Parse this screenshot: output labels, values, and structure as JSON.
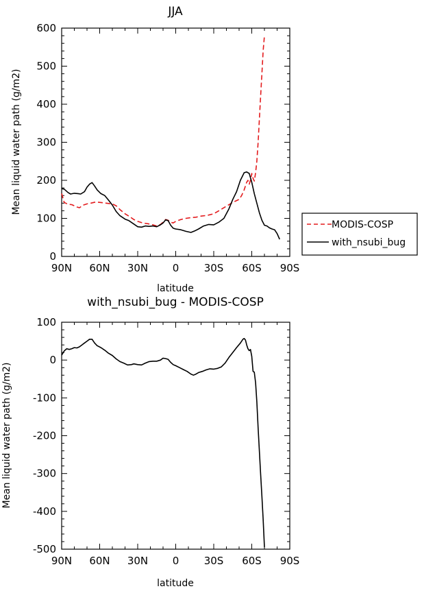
{
  "chart_data": [
    {
      "type": "line",
      "title": "JJA",
      "xlabel": "latitude",
      "ylabel": "Mean liquid water path (g/m2)",
      "xlim": [
        90,
        -90
      ],
      "ylim": [
        0,
        600
      ],
      "x_ticks": [
        90,
        60,
        30,
        0,
        -30,
        -60,
        -90
      ],
      "x_tick_labels": [
        "90N",
        "60N",
        "30N",
        "0",
        "30S",
        "60S",
        "90S"
      ],
      "y_ticks": [
        0,
        100,
        200,
        300,
        400,
        500,
        600
      ],
      "y_tick_labels": [
        "0",
        "100",
        "200",
        "300",
        "400",
        "500",
        "600"
      ],
      "legend_position": "right",
      "series": [
        {
          "name": "MODIS-COSP",
          "color": "#e31a1c",
          "dash": "dashed",
          "points": [
            [
              90,
              165
            ],
            [
              88,
              142
            ],
            [
              85,
              137
            ],
            [
              82,
              136
            ],
            [
              78,
              130
            ],
            [
              76,
              128
            ],
            [
              73,
              135
            ],
            [
              70,
              138
            ],
            [
              67,
              140
            ],
            [
              63,
              143
            ],
            [
              60,
              142
            ],
            [
              55,
              140
            ],
            [
              50,
              138
            ],
            [
              47,
              133
            ],
            [
              44,
              123
            ],
            [
              40,
              112
            ],
            [
              37,
              106
            ],
            [
              33,
              97
            ],
            [
              30,
              92
            ],
            [
              26,
              88
            ],
            [
              22,
              86
            ],
            [
              18,
              83
            ],
            [
              15,
              80
            ],
            [
              12,
              84
            ],
            [
              10,
              90
            ],
            [
              8,
              97
            ],
            [
              6,
              95
            ],
            [
              4,
              90
            ],
            [
              2,
              88
            ],
            [
              0,
              92
            ],
            [
              -4,
              97
            ],
            [
              -8,
              100
            ],
            [
              -12,
              102
            ],
            [
              -16,
              103
            ],
            [
              -20,
              106
            ],
            [
              -25,
              108
            ],
            [
              -30,
              112
            ],
            [
              -35,
              122
            ],
            [
              -40,
              132
            ],
            [
              -45,
              142
            ],
            [
              -50,
              150
            ],
            [
              -52,
              160
            ],
            [
              -54,
              175
            ],
            [
              -56,
              195
            ],
            [
              -57,
              200
            ],
            [
              -58,
              190
            ],
            [
              -59,
              200
            ],
            [
              -60,
              218
            ],
            [
              -61,
              205
            ],
            [
              -62,
              198
            ],
            [
              -63,
              220
            ],
            [
              -64,
              250
            ],
            [
              -65,
              300
            ],
            [
              -66,
              360
            ],
            [
              -67,
              420
            ],
            [
              -68,
              480
            ],
            [
              -69,
              540
            ],
            [
              -70,
              580
            ]
          ]
        },
        {
          "name": "with_nsubi_bug",
          "color": "#000000",
          "dash": "solid",
          "points": [
            [
              90,
              178
            ],
            [
              88,
              177
            ],
            [
              85,
              168
            ],
            [
              83,
              164
            ],
            [
              80,
              166
            ],
            [
              77,
              165
            ],
            [
              75,
              164
            ],
            [
              72,
              170
            ],
            [
              70,
              182
            ],
            [
              68,
              190
            ],
            [
              66,
              194
            ],
            [
              64,
              185
            ],
            [
              62,
              175
            ],
            [
              59,
              165
            ],
            [
              56,
              160
            ],
            [
              53,
              148
            ],
            [
              50,
              135
            ],
            [
              47,
              118
            ],
            [
              44,
              107
            ],
            [
              40,
              98
            ],
            [
              37,
              94
            ],
            [
              33,
              85
            ],
            [
              30,
              78
            ],
            [
              27,
              77
            ],
            [
              24,
              80
            ],
            [
              21,
              79
            ],
            [
              18,
              80
            ],
            [
              15,
              78
            ],
            [
              12,
              83
            ],
            [
              10,
              88
            ],
            [
              8,
              96
            ],
            [
              6,
              94
            ],
            [
              4,
              82
            ],
            [
              2,
              74
            ],
            [
              0,
              72
            ],
            [
              -4,
              70
            ],
            [
              -8,
              66
            ],
            [
              -12,
              63
            ],
            [
              -15,
              67
            ],
            [
              -18,
              72
            ],
            [
              -22,
              80
            ],
            [
              -26,
              84
            ],
            [
              -30,
              83
            ],
            [
              -34,
              90
            ],
            [
              -38,
              100
            ],
            [
              -42,
              125
            ],
            [
              -45,
              150
            ],
            [
              -48,
              170
            ],
            [
              -51,
              200
            ],
            [
              -54,
              220
            ],
            [
              -56,
              222
            ],
            [
              -58,
              218
            ],
            [
              -60,
              195
            ],
            [
              -62,
              165
            ],
            [
              -64,
              140
            ],
            [
              -66,
              115
            ],
            [
              -68,
              95
            ],
            [
              -70,
              82
            ],
            [
              -72,
              80
            ],
            [
              -74,
              75
            ],
            [
              -76,
              72
            ],
            [
              -78,
              70
            ],
            [
              -80,
              60
            ],
            [
              -82,
              45
            ]
          ]
        }
      ]
    },
    {
      "type": "line",
      "title": "with_nsubi_bug - MODIS-COSP",
      "xlabel": "latitude",
      "ylabel": "Mean liquid water path (g/m2)",
      "xlim": [
        90,
        -90
      ],
      "ylim": [
        -500,
        100
      ],
      "x_ticks": [
        90,
        60,
        30,
        0,
        -30,
        -60,
        -90
      ],
      "x_tick_labels": [
        "90N",
        "60N",
        "30N",
        "0",
        "30S",
        "60S",
        "90S"
      ],
      "y_ticks": [
        -500,
        -400,
        -300,
        -200,
        -100,
        0,
        100
      ],
      "y_tick_labels": [
        "-500",
        "-400",
        "-300",
        "-200",
        "-100",
        "0",
        "100"
      ],
      "legend_position": "none",
      "series": [
        {
          "name": "with_nsubi_bug - MODIS-COSP",
          "color": "#000000",
          "dash": "solid",
          "points": [
            [
              90,
              13
            ],
            [
              88,
              24
            ],
            [
              86,
              30
            ],
            [
              84,
              28
            ],
            [
              82,
              30
            ],
            [
              80,
              33
            ],
            [
              78,
              32
            ],
            [
              76,
              35
            ],
            [
              74,
              40
            ],
            [
              72,
              45
            ],
            [
              70,
              50
            ],
            [
              68,
              55
            ],
            [
              66,
              55
            ],
            [
              64,
              45
            ],
            [
              62,
              38
            ],
            [
              59,
              33
            ],
            [
              56,
              26
            ],
            [
              53,
              18
            ],
            [
              50,
              12
            ],
            [
              47,
              3
            ],
            [
              44,
              -4
            ],
            [
              41,
              -8
            ],
            [
              38,
              -13
            ],
            [
              35,
              -12
            ],
            [
              33,
              -10
            ],
            [
              30,
              -12
            ],
            [
              27,
              -13
            ],
            [
              24,
              -8
            ],
            [
              21,
              -4
            ],
            [
              18,
              -3
            ],
            [
              15,
              -3
            ],
            [
              12,
              0
            ],
            [
              10,
              5
            ],
            [
              8,
              4
            ],
            [
              6,
              2
            ],
            [
              4,
              -6
            ],
            [
              2,
              -12
            ],
            [
              0,
              -15
            ],
            [
              -3,
              -20
            ],
            [
              -6,
              -25
            ],
            [
              -9,
              -30
            ],
            [
              -12,
              -37
            ],
            [
              -14,
              -40
            ],
            [
              -16,
              -37
            ],
            [
              -18,
              -33
            ],
            [
              -21,
              -30
            ],
            [
              -24,
              -26
            ],
            [
              -27,
              -23
            ],
            [
              -30,
              -24
            ],
            [
              -33,
              -22
            ],
            [
              -36,
              -18
            ],
            [
              -39,
              -8
            ],
            [
              -42,
              7
            ],
            [
              -45,
              20
            ],
            [
              -48,
              33
            ],
            [
              -51,
              45
            ],
            [
              -53,
              55
            ],
            [
              -54,
              57
            ],
            [
              -55,
              53
            ],
            [
              -56,
              40
            ],
            [
              -57,
              30
            ],
            [
              -58,
              25
            ],
            [
              -59,
              28
            ],
            [
              -60,
              10
            ],
            [
              -61,
              -30
            ],
            [
              -62,
              -32
            ],
            [
              -63,
              -60
            ],
            [
              -64,
              -110
            ],
            [
              -65,
              -180
            ],
            [
              -66,
              -240
            ],
            [
              -67,
              -300
            ],
            [
              -68,
              -360
            ],
            [
              -69,
              -420
            ],
            [
              -70,
              -495
            ]
          ]
        }
      ]
    }
  ]
}
